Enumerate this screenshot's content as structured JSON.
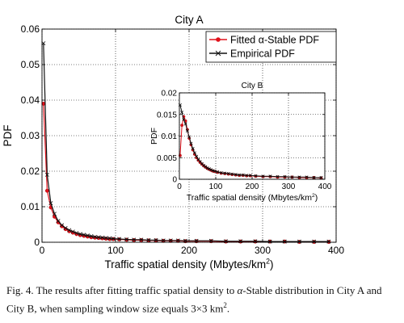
{
  "chart_data": [
    {
      "type": "line",
      "title": "City A",
      "xlabel": "Traffic spatial density (Mbytes/km",
      "xlabel_sup": "2",
      "xlabel_close": ")",
      "ylabel": "PDF",
      "xlim": [
        0,
        400
      ],
      "ylim": [
        0,
        0.06
      ],
      "xticks": [
        0,
        100,
        200,
        300,
        400
      ],
      "xtick_labels": [
        "0",
        "100",
        "200",
        "300",
        "400"
      ],
      "yticks": [
        0,
        0.01,
        0.02,
        0.03,
        0.04,
        0.05,
        0.06
      ],
      "ytick_labels": [
        "0",
        "0.01",
        "0.02",
        "0.03",
        "0.04",
        "0.05",
        "0.06"
      ],
      "grid": true,
      "legend": "top-right",
      "series": [
        {
          "name": "Fitted α-Stable PDF",
          "color": "#e0101a",
          "marker": "circle",
          "x": [
            2,
            7,
            12,
            17,
            22,
            27,
            32,
            37,
            42,
            47,
            52,
            57,
            62,
            67,
            72,
            77,
            82,
            87,
            92,
            97,
            105,
            115,
            125,
            135,
            145,
            155,
            165,
            175,
            185,
            195,
            210,
            230,
            250,
            270,
            290,
            310,
            330,
            350,
            370,
            390
          ],
          "values": [
            0.039,
            0.0145,
            0.0098,
            0.0072,
            0.0056,
            0.0045,
            0.0037,
            0.0031,
            0.0027,
            0.0023,
            0.002,
            0.0018,
            0.0016,
            0.0014,
            0.0013,
            0.0012,
            0.0011,
            0.001,
            0.0009,
            0.0009,
            0.0008,
            0.0007,
            0.0006,
            0.0006,
            0.0005,
            0.0005,
            0.0004,
            0.0004,
            0.0004,
            0.0003,
            0.0003,
            0.0003,
            0.0002,
            0.0002,
            0.0002,
            0.0002,
            0.0002,
            0.0001,
            0.0001,
            0.0001
          ]
        },
        {
          "name": "Empirical PDF",
          "color": "#111111",
          "marker": "x",
          "x": [
            2,
            7,
            12,
            17,
            22,
            27,
            32,
            37,
            42,
            47,
            52,
            57,
            62,
            67,
            72,
            77,
            82,
            87,
            92,
            97,
            105,
            115,
            125,
            135,
            145,
            155,
            165,
            175,
            185,
            195,
            210,
            230,
            250,
            270,
            290,
            310,
            330,
            350,
            370,
            390
          ],
          "values": [
            0.056,
            0.019,
            0.011,
            0.008,
            0.006,
            0.0048,
            0.004,
            0.0034,
            0.003,
            0.0026,
            0.0023,
            0.0021,
            0.0019,
            0.0017,
            0.0015,
            0.0014,
            0.0013,
            0.0012,
            0.0011,
            0.001,
            0.0009,
            0.0008,
            0.0007,
            0.0007,
            0.0006,
            0.0006,
            0.0005,
            0.0005,
            0.0005,
            0.0004,
            0.0004,
            0.0004,
            0.0003,
            0.0003,
            0.0003,
            0.0002,
            0.0002,
            0.0002,
            0.0002,
            0.0002
          ]
        }
      ]
    },
    {
      "type": "line",
      "title": "City B",
      "xlabel": "Traffic spatial density (Mbytes/km",
      "xlabel_sup": "2",
      "xlabel_close": ")",
      "ylabel": "PDF",
      "xlim": [
        0,
        400
      ],
      "ylim": [
        0,
        0.02
      ],
      "xticks": [
        0,
        100,
        200,
        300,
        400
      ],
      "xtick_labels": [
        "0",
        "100",
        "200",
        "300",
        "400"
      ],
      "yticks": [
        0,
        0.005,
        0.01,
        0.015,
        0.02
      ],
      "ytick_labels": [
        "0",
        "0.005",
        "0.01",
        "0.015",
        "0.02"
      ],
      "grid": true,
      "series": [
        {
          "color": "#e0101a",
          "marker": "circle",
          "x": [
            2,
            7,
            12,
            17,
            22,
            27,
            32,
            37,
            42,
            47,
            52,
            57,
            62,
            67,
            72,
            77,
            82,
            87,
            92,
            97,
            105,
            115,
            125,
            135,
            145,
            155,
            165,
            175,
            185,
            195,
            210,
            230,
            250,
            270,
            290,
            310,
            330,
            350,
            370,
            390
          ],
          "values": [
            0.0055,
            0.0125,
            0.0145,
            0.0135,
            0.0115,
            0.0095,
            0.008,
            0.0068,
            0.0058,
            0.005,
            0.0044,
            0.0039,
            0.0035,
            0.0031,
            0.0028,
            0.0025,
            0.0023,
            0.0021,
            0.0019,
            0.0018,
            0.0016,
            0.0014,
            0.0013,
            0.0012,
            0.0011,
            0.001,
            0.0009,
            0.0009,
            0.0008,
            0.0008,
            0.0007,
            0.0006,
            0.0006,
            0.0005,
            0.0005,
            0.0005,
            0.0004,
            0.0004,
            0.0004,
            0.0003
          ]
        },
        {
          "color": "#111111",
          "marker": "x",
          "x": [
            2,
            7,
            12,
            17,
            22,
            27,
            32,
            37,
            42,
            47,
            52,
            57,
            62,
            67,
            72,
            77,
            82,
            87,
            92,
            97,
            105,
            115,
            125,
            135,
            145,
            155,
            165,
            175,
            185,
            195,
            210,
            230,
            250,
            270,
            290,
            310,
            330,
            350,
            370,
            390
          ],
          "values": [
            0.0172,
            0.0155,
            0.0138,
            0.0128,
            0.0112,
            0.0098,
            0.0083,
            0.0071,
            0.0061,
            0.0053,
            0.0046,
            0.0041,
            0.0036,
            0.0032,
            0.0029,
            0.0026,
            0.0024,
            0.0022,
            0.002,
            0.0019,
            0.0017,
            0.0015,
            0.0014,
            0.0013,
            0.0012,
            0.0011,
            0.001,
            0.001,
            0.0009,
            0.0009,
            0.0008,
            0.0007,
            0.0007,
            0.0006,
            0.0006,
            0.0005,
            0.0005,
            0.0005,
            0.0004,
            0.0004
          ]
        }
      ]
    }
  ],
  "caption": {
    "prefix": "Fig. 4.  The results after fitting traffic spatial density to ",
    "alpha": "α",
    "middle": "-Stable distribution in City A and City B, when sampling window size equals 3×3 km",
    "sup": "2",
    "suffix": "."
  }
}
